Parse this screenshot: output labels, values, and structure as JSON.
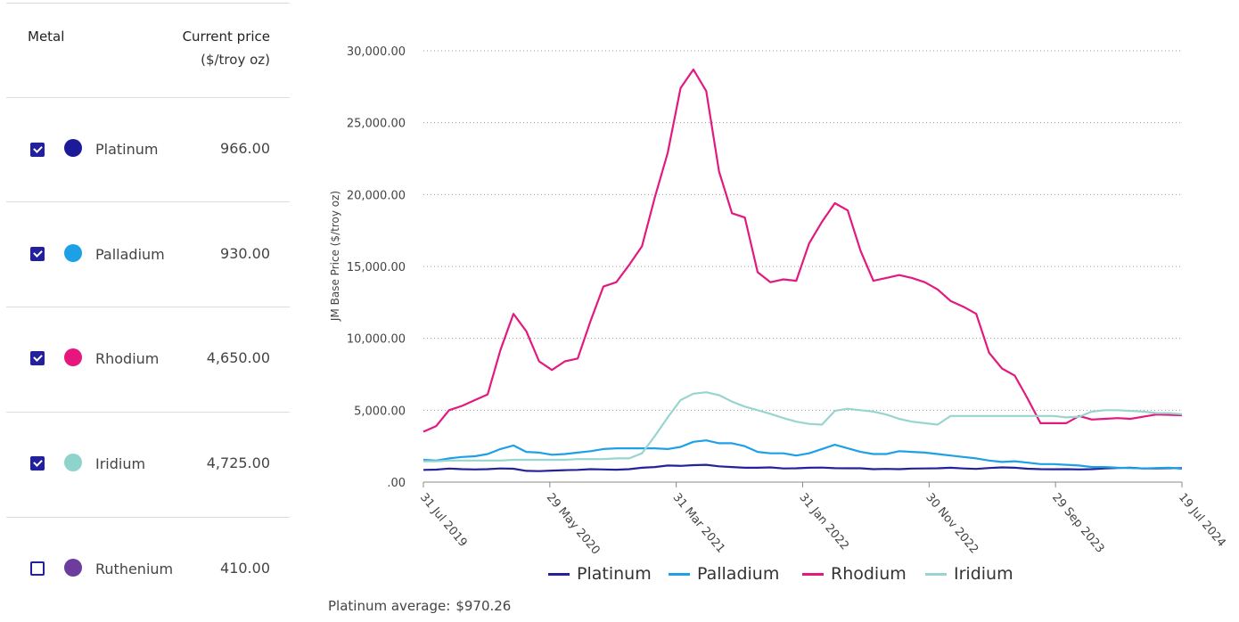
{
  "table": {
    "header_metal": "Metal",
    "header_price": "Current price",
    "header_unit": "($/troy oz)",
    "rows": [
      {
        "name": "Platinum",
        "price": "966.00",
        "color": "#1c1a99",
        "checked": true
      },
      {
        "name": "Palladium",
        "price": "930.00",
        "color": "#1ea0e6",
        "checked": true
      },
      {
        "name": "Rhodium",
        "price": "4,650.00",
        "color": "#e6167e",
        "checked": true
      },
      {
        "name": "Iridium",
        "price": "4,725.00",
        "color": "#8fd4cc",
        "checked": true
      },
      {
        "name": "Ruthenium",
        "price": "410.00",
        "color": "#6c3d9c",
        "checked": false
      }
    ]
  },
  "chart_data": {
    "type": "line",
    "ylabel": "JM Base Price ($/troy oz)",
    "ylim": [
      0,
      30000
    ],
    "yticks": [
      ".00",
      "5,000.00",
      "10,000.00",
      "15,000.00",
      "20,000.00",
      "25,000.00",
      "30,000.00"
    ],
    "xticks": [
      "31 Jul 2019",
      "29 May 2020",
      "31 Mar 2021",
      "31 Jan 2022",
      "30 Nov 2022",
      "29 Sep 2023",
      "19 Jul 2024"
    ],
    "grid": "horizontal-dotted",
    "legend": "bottom",
    "series": [
      {
        "name": "Platinum",
        "color": "#24229b",
        "values": [
          850,
          870,
          940,
          900,
          880,
          900,
          950,
          930,
          780,
          760,
          800,
          830,
          850,
          900,
          880,
          860,
          900,
          1000,
          1050,
          1150,
          1130,
          1180,
          1200,
          1100,
          1050,
          1000,
          1000,
          1020,
          950,
          960,
          1000,
          1010,
          970,
          960,
          960,
          900,
          920,
          900,
          940,
          950,
          960,
          1000,
          950,
          920,
          980,
          1020,
          1000,
          930,
          900,
          890,
          900,
          880,
          900,
          950,
          980,
          1000,
          950,
          950,
          970,
          966
        ]
      },
      {
        "name": "Palladium",
        "color": "#1ea0e6",
        "values": [
          1550,
          1500,
          1650,
          1750,
          1800,
          1950,
          2300,
          2550,
          2100,
          2050,
          1900,
          1950,
          2050,
          2150,
          2300,
          2350,
          2350,
          2350,
          2350,
          2300,
          2450,
          2800,
          2900,
          2700,
          2700,
          2500,
          2100,
          2000,
          2000,
          1850,
          2000,
          2300,
          2600,
          2350,
          2100,
          1950,
          1950,
          2150,
          2100,
          2050,
          1950,
          1850,
          1750,
          1650,
          1500,
          1400,
          1450,
          1350,
          1250,
          1250,
          1200,
          1150,
          1050,
          1050,
          1000,
          980,
          950,
          980,
          1000,
          930
        ]
      },
      {
        "name": "Rhodium",
        "color": "#e2197e",
        "values": [
          3500,
          3900,
          5000,
          5300,
          5700,
          6100,
          9200,
          11700,
          10500,
          8400,
          7800,
          8400,
          8600,
          11200,
          13600,
          13900,
          15100,
          16400,
          19800,
          22900,
          27400,
          28700,
          27200,
          21600,
          18700,
          18400,
          14600,
          13900,
          14100,
          14000,
          16600,
          18100,
          19400,
          18900,
          16100,
          14000,
          14200,
          14400,
          14200,
          13900,
          13400,
          12600,
          12200,
          11700,
          9000,
          7900,
          7400,
          5800,
          4100,
          4100,
          4100,
          4600,
          4350,
          4400,
          4450,
          4400,
          4550,
          4700,
          4680,
          4650
        ]
      },
      {
        "name": "Iridium",
        "color": "#97d5ce",
        "values": [
          1450,
          1450,
          1500,
          1500,
          1500,
          1500,
          1500,
          1550,
          1550,
          1550,
          1550,
          1550,
          1600,
          1600,
          1600,
          1650,
          1650,
          2000,
          3200,
          4500,
          5700,
          6150,
          6250,
          6050,
          5600,
          5250,
          5000,
          4750,
          4450,
          4200,
          4050,
          4000,
          4950,
          5100,
          5000,
          4900,
          4700,
          4400,
          4200,
          4100,
          4000,
          4600,
          4600,
          4600,
          4600,
          4600,
          4600,
          4600,
          4600,
          4600,
          4500,
          4550,
          4900,
          5000,
          5000,
          4950,
          4900,
          4800,
          4800,
          4725
        ]
      }
    ]
  },
  "footer": {
    "avg_label": "Platinum average:",
    "avg_value": "$970.26"
  }
}
